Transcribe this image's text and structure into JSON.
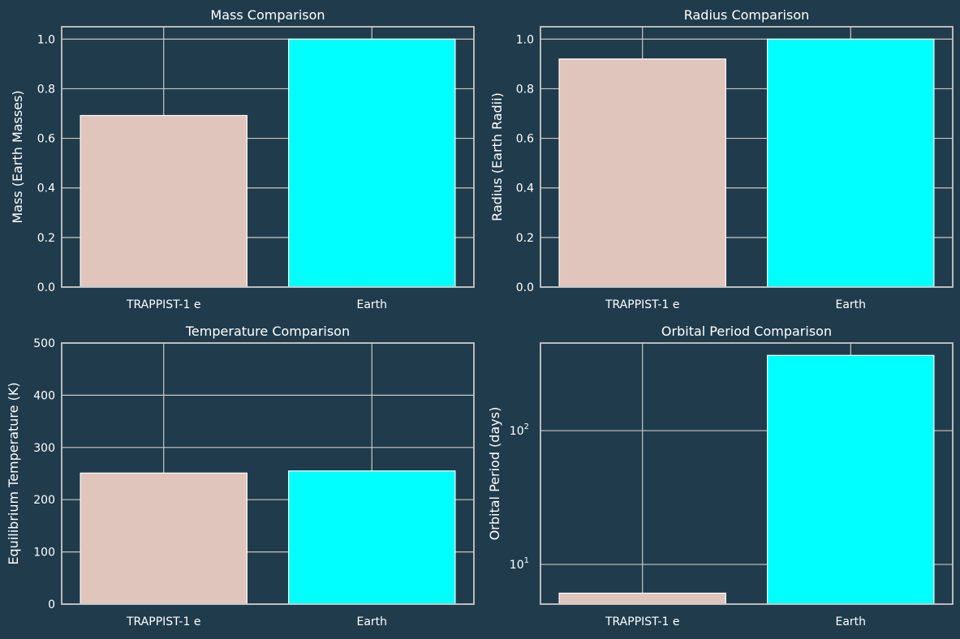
{
  "figure": {
    "background": "#203c4c",
    "grid_color": "#c8c8c8"
  },
  "chart_data": [
    {
      "type": "bar",
      "title": "Mass Comparison",
      "xlabel": "",
      "ylabel": "Mass (Earth Masses)",
      "categories": [
        "TRAPPIST-1 e",
        "Earth"
      ],
      "values": [
        0.692,
        1.0
      ],
      "colors": [
        "#e0c5bc",
        "#00ffff"
      ],
      "ylim": [
        0,
        1.05
      ],
      "yscale": "linear",
      "yticks": [
        0.0,
        0.2,
        0.4,
        0.6,
        0.8,
        1.0
      ],
      "ytick_labels": [
        "0.0",
        "0.2",
        "0.4",
        "0.6",
        "0.8",
        "1.0"
      ],
      "grid": true
    },
    {
      "type": "bar",
      "title": "Radius Comparison",
      "xlabel": "",
      "ylabel": "Radius (Earth Radii)",
      "categories": [
        "TRAPPIST-1 e",
        "Earth"
      ],
      "values": [
        0.92,
        1.0
      ],
      "colors": [
        "#e0c5bc",
        "#00ffff"
      ],
      "ylim": [
        0,
        1.05
      ],
      "yscale": "linear",
      "yticks": [
        0.0,
        0.2,
        0.4,
        0.6,
        0.8,
        1.0
      ],
      "ytick_labels": [
        "0.0",
        "0.2",
        "0.4",
        "0.6",
        "0.8",
        "1.0"
      ],
      "grid": true
    },
    {
      "type": "bar",
      "title": "Temperature Comparison",
      "xlabel": "",
      "ylabel": "Equilibrium Temperature (K)",
      "categories": [
        "TRAPPIST-1 e",
        "Earth"
      ],
      "values": [
        251,
        255
      ],
      "colors": [
        "#e0c5bc",
        "#00ffff"
      ],
      "ylim": [
        0,
        500
      ],
      "yscale": "linear",
      "yticks": [
        0,
        100,
        200,
        300,
        400,
        500
      ],
      "ytick_labels": [
        "0",
        "100",
        "200",
        "300",
        "400",
        "500"
      ],
      "grid": true
    },
    {
      "type": "bar",
      "title": "Orbital Period Comparison",
      "xlabel": "",
      "ylabel": "Orbital Period (days)",
      "categories": [
        "TRAPPIST-1 e",
        "Earth"
      ],
      "values": [
        6.1,
        365.25
      ],
      "colors": [
        "#e0c5bc",
        "#00ffff"
      ],
      "ylim": [
        5.05,
        452
      ],
      "yscale": "log",
      "yticks": [
        10,
        100
      ],
      "ytick_labels": [
        {
          "base": "10",
          "exp": "1"
        },
        {
          "base": "10",
          "exp": "2"
        }
      ],
      "grid": true
    }
  ]
}
